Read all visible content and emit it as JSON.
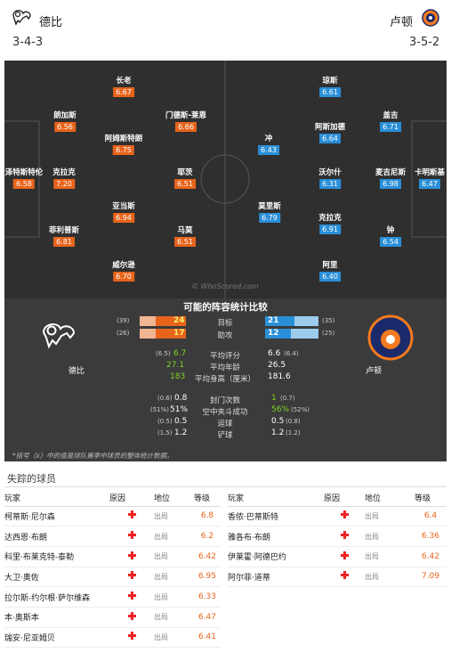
{
  "header": {
    "home_team": "德比",
    "away_team": "卢顿",
    "home_formation": "3-4-3",
    "away_formation": "3-5-2"
  },
  "pitch": {
    "watermark": "© WhoScored.com",
    "home_players": [
      {
        "name": "长老",
        "rating": "6.67"
      },
      {
        "name": "朗加斯",
        "rating": "6.56"
      },
      {
        "name": "门德斯-莱恩",
        "rating": "6.66"
      },
      {
        "name": "阿姆斯特朗",
        "rating": "6.75"
      },
      {
        "name": "泽特斯特伦",
        "rating": "6.58"
      },
      {
        "name": "克拉克",
        "rating": "7.20"
      },
      {
        "name": "耶茨",
        "rating": "6.51"
      },
      {
        "name": "亚当斯",
        "rating": "6.94"
      },
      {
        "name": "菲利普斯",
        "rating": "6.81"
      },
      {
        "name": "马莫",
        "rating": "6.51"
      },
      {
        "name": "威尔逊",
        "rating": "6.70"
      }
    ],
    "away_players": [
      {
        "name": "琼斯",
        "rating": "6.61"
      },
      {
        "name": "盖吉",
        "rating": "6.71"
      },
      {
        "name": "阿斯加德",
        "rating": "6.64"
      },
      {
        "name": "冲",
        "rating": "6.43"
      },
      {
        "name": "沃尔什",
        "rating": "6.31"
      },
      {
        "name": "麦吉尼斯",
        "rating": "6.98"
      },
      {
        "name": "卡明斯基",
        "rating": "6.47"
      },
      {
        "name": "莫里斯",
        "rating": "6.79"
      },
      {
        "name": "克拉克",
        "rating": "6.91"
      },
      {
        "name": "钟",
        "rating": "6.54"
      },
      {
        "name": "阿里",
        "rating": "6.40"
      }
    ]
  },
  "stats": {
    "title": "可能的阵容统计比较",
    "home_name": "德比",
    "away_name": "卢顿",
    "goals": {
      "label": "目标",
      "home": "24",
      "home_sub": "(39)",
      "away": "21",
      "away_sub": "(35)"
    },
    "assists": {
      "label": "助攻",
      "home": "17",
      "home_sub": "(26)",
      "away": "12",
      "away_sub": "(25)"
    },
    "avg_rating": {
      "label": "平均评分",
      "home": "6.7",
      "home_sub": "(6.5)",
      "away": "6.6",
      "away_sub": "(6.4)"
    },
    "avg_age": {
      "label": "平均年龄",
      "home": "27.1",
      "away": "26.5"
    },
    "avg_height": {
      "label": "平均身高（厘米）",
      "home": "183",
      "away": "181.6"
    },
    "clean_sheets": {
      "label": "封门次数",
      "home": "0.8",
      "home_sub": "(0.6)",
      "away": "1",
      "away_sub": "(0.7)"
    },
    "aerials": {
      "label": "空中夹斗成功",
      "home": "51%",
      "home_sub": "(51%)",
      "away": "56%",
      "away_sub": "(52%)"
    },
    "dribbles": {
      "label": "运球",
      "home": "0.5",
      "home_sub": "(0.5)",
      "away": "0.5",
      "away_sub": "(0.8)"
    },
    "shots": {
      "label": "铲球",
      "home": "1.2",
      "home_sub": "(1.5)",
      "away": "1.2",
      "away_sub": "(1.2)"
    },
    "note": "*括号（x）中的值是球队赛季中球员的整体统计数据。"
  },
  "missing": {
    "title": "失踪的球员",
    "headers": [
      "玩家",
      "原因",
      "地位",
      "等级"
    ],
    "left": [
      {
        "name": "柯蒂斯·尼尔森",
        "status": "出局",
        "rating": "6.8"
      },
      {
        "name": "达西恩·布朗",
        "status": "出局",
        "rating": "6.2"
      },
      {
        "name": "科里·布莱克特-泰勒",
        "status": "出局",
        "rating": "6.42"
      },
      {
        "name": "大卫·奥佐",
        "status": "出局",
        "rating": "6.95"
      },
      {
        "name": "拉尔斯-约尔根·萨尔维森",
        "status": "出局",
        "rating": "6.33"
      },
      {
        "name": "本·奥斯本",
        "status": "出局",
        "rating": "6.47"
      },
      {
        "name": "瑞安·尼亚姆贝",
        "status": "出局",
        "rating": "6.41"
      }
    ],
    "right": [
      {
        "name": "香侬·巴蒂斯特",
        "status": "出局",
        "rating": "6.4"
      },
      {
        "name": "雅各布·布朗",
        "status": "出局",
        "rating": "6.36"
      },
      {
        "name": "伊莱霍·阿德巴约",
        "status": "出局",
        "rating": "6.42"
      },
      {
        "name": "阿尔菲·道蒂",
        "status": "出局",
        "rating": "7.09"
      }
    ]
  },
  "colors": {
    "home": "#e8641b",
    "away": "#2a8fd8",
    "positive": "#7fd321"
  }
}
